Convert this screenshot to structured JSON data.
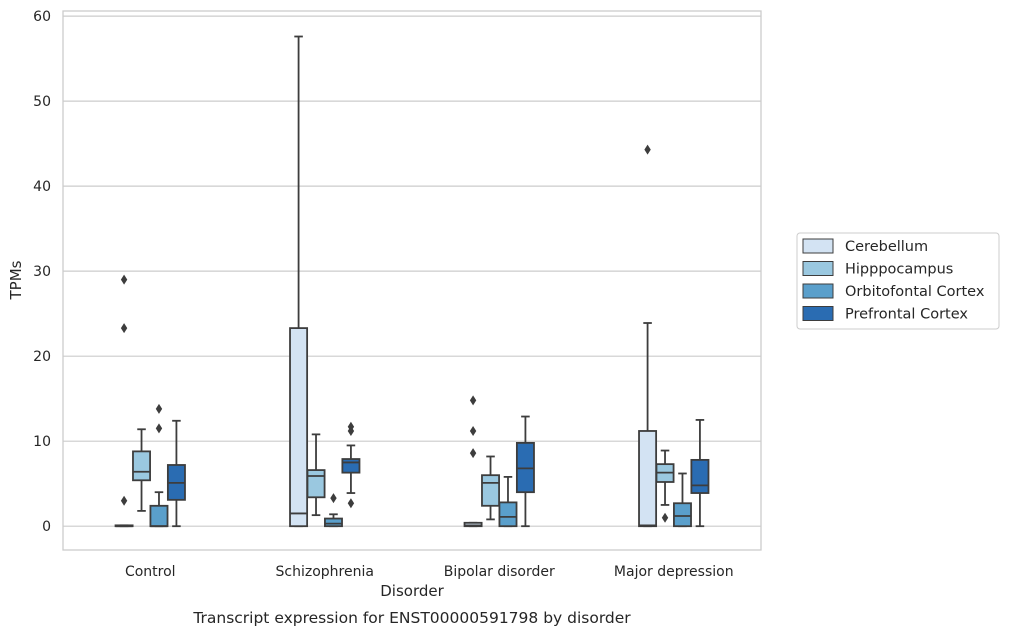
{
  "chart_data": {
    "type": "box",
    "title": "",
    "caption": "Transcript expression for ENST00000591798 by disorder",
    "xlabel": "Disorder",
    "ylabel": "TPMs",
    "ylim": [
      -2.8,
      60.6
    ],
    "yticks": [
      0,
      10,
      20,
      30,
      40,
      50,
      60
    ],
    "grid": "horizontal",
    "legend_position": "right",
    "categories": [
      "Control",
      "Schizophrenia",
      "Bipolar disorder",
      "Major depression"
    ],
    "series": [
      {
        "name": "Cerebellum",
        "color": "#d3e3f3",
        "boxes": [
          {
            "q1": 0,
            "median": 0,
            "q3": 0.1,
            "whisker_low": 0,
            "whisker_high": 0.1,
            "outliers": [
              3,
              23.3,
              29
            ]
          },
          {
            "q1": 0,
            "median": 1.5,
            "q3": 23.3,
            "whisker_low": 0,
            "whisker_high": 57.6,
            "outliers": []
          },
          {
            "q1": 0,
            "median": 0.1,
            "q3": 0.4,
            "whisker_low": 0,
            "whisker_high": 0.4,
            "outliers": [
              8.6,
              11.2,
              14.8
            ]
          },
          {
            "q1": 0,
            "median": 0.1,
            "q3": 11.2,
            "whisker_low": 0,
            "whisker_high": 23.9,
            "outliers": [
              44.3
            ]
          }
        ]
      },
      {
        "name": "Hipppocampus",
        "color": "#9ac8e0",
        "boxes": [
          {
            "q1": 5.4,
            "median": 6.4,
            "q3": 8.8,
            "whisker_low": 1.8,
            "whisker_high": 11.4,
            "outliers": []
          },
          {
            "q1": 3.4,
            "median": 5.9,
            "q3": 6.6,
            "whisker_low": 1.3,
            "whisker_high": 10.8,
            "outliers": []
          },
          {
            "q1": 2.4,
            "median": 5.1,
            "q3": 6.0,
            "whisker_low": 0.8,
            "whisker_high": 8.2,
            "outliers": []
          },
          {
            "q1": 5.2,
            "median": 6.3,
            "q3": 7.3,
            "whisker_low": 2.5,
            "whisker_high": 8.9,
            "outliers": [
              1.0
            ]
          }
        ]
      },
      {
        "name": "Orbitofontal Cortex",
        "color": "#5a9fcb",
        "boxes": [
          {
            "q1": 0,
            "median": 0,
            "q3": 2.4,
            "whisker_low": 0,
            "whisker_high": 4.0,
            "outliers": [
              11.5,
              13.8
            ]
          },
          {
            "q1": 0,
            "median": 0.3,
            "q3": 0.9,
            "whisker_low": 0,
            "whisker_high": 1.4,
            "outliers": [
              3.3
            ]
          },
          {
            "q1": 0,
            "median": 1.1,
            "q3": 2.8,
            "whisker_low": 0,
            "whisker_high": 5.8,
            "outliers": []
          },
          {
            "q1": 0,
            "median": 1.2,
            "q3": 2.7,
            "whisker_low": 0,
            "whisker_high": 6.2,
            "outliers": []
          }
        ]
      },
      {
        "name": "Prefrontal Cortex",
        "color": "#2a6cb2",
        "boxes": [
          {
            "q1": 3.1,
            "median": 5.1,
            "q3": 7.2,
            "whisker_low": 0,
            "whisker_high": 12.4,
            "outliers": []
          },
          {
            "q1": 6.3,
            "median": 7.5,
            "q3": 7.9,
            "whisker_low": 3.9,
            "whisker_high": 9.5,
            "outliers": [
              2.7,
              11.2,
              11.7
            ]
          },
          {
            "q1": 4.0,
            "median": 6.8,
            "q3": 9.8,
            "whisker_low": 0,
            "whisker_high": 12.9,
            "outliers": []
          },
          {
            "q1": 3.9,
            "median": 4.8,
            "q3": 7.8,
            "whisker_low": 0,
            "whisker_high": 12.5,
            "outliers": []
          }
        ]
      }
    ]
  }
}
